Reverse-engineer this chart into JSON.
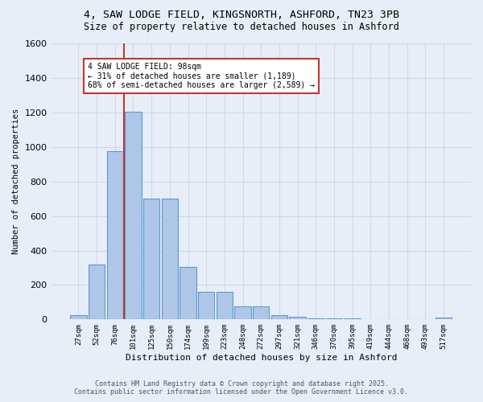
{
  "title_line1": "4, SAW LODGE FIELD, KINGSNORTH, ASHFORD, TN23 3PB",
  "title_line2": "Size of property relative to detached houses in Ashford",
  "xlabel": "Distribution of detached houses by size in Ashford",
  "ylabel": "Number of detached properties",
  "categories": [
    "27sqm",
    "52sqm",
    "76sqm",
    "101sqm",
    "125sqm",
    "150sqm",
    "174sqm",
    "199sqm",
    "223sqm",
    "248sqm",
    "272sqm",
    "297sqm",
    "321sqm",
    "346sqm",
    "370sqm",
    "395sqm",
    "419sqm",
    "444sqm",
    "468sqm",
    "493sqm",
    "517sqm"
  ],
  "values": [
    25,
    320,
    975,
    1205,
    700,
    700,
    305,
    160,
    160,
    75,
    75,
    25,
    15,
    8,
    5,
    5,
    3,
    2,
    2,
    1,
    10
  ],
  "bar_color": "#aec6e8",
  "bar_edge_color": "#5b9bd5",
  "vline_color": "#c0392b",
  "annotation_text": "4 SAW LODGE FIELD: 98sqm\n← 31% of detached houses are smaller (1,189)\n68% of semi-detached houses are larger (2,589) →",
  "annotation_box_color": "#ffffff",
  "annotation_box_edge_color": "#c0392b",
  "ylim": [
    0,
    1600
  ],
  "yticks": [
    0,
    200,
    400,
    600,
    800,
    1000,
    1200,
    1400,
    1600
  ],
  "grid_color": "#d0d8e8",
  "bg_color": "#e8eef8",
  "footer_line1": "Contains HM Land Registry data © Crown copyright and database right 2025.",
  "footer_line2": "Contains public sector information licensed under the Open Government Licence v3.0."
}
